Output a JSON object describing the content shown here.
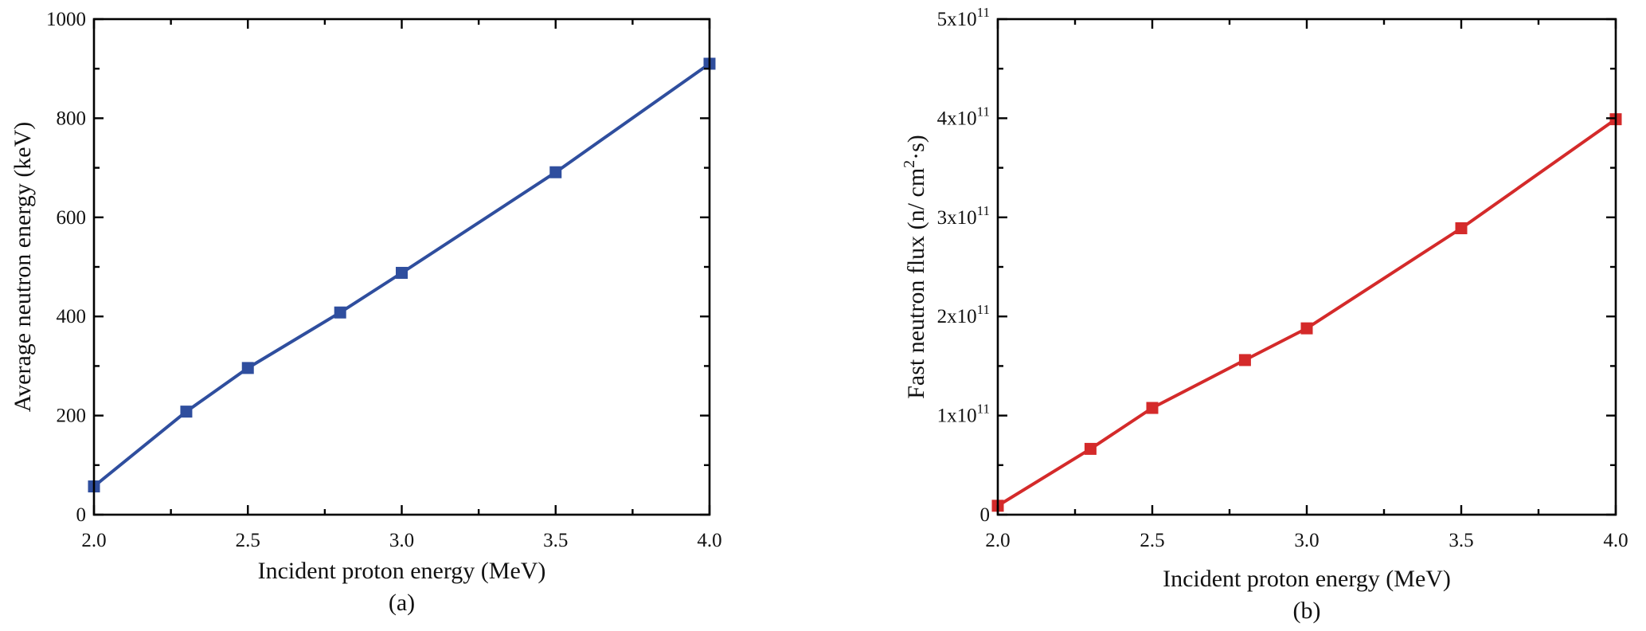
{
  "figure": {
    "panels": [
      {
        "id": "a",
        "caption": "(a)",
        "xlabel": "Incident proton energy (MeV)",
        "ylabel": "Average neutron energy (keV)",
        "color": "#2F4E9E",
        "x_ticks": [
          "2.0",
          "2.5",
          "3.0",
          "3.5",
          "4.0"
        ],
        "y_ticks": [
          "0",
          "200",
          "400",
          "600",
          "800",
          "1000"
        ]
      },
      {
        "id": "b",
        "caption": "(b)",
        "xlabel": "Incident proton energy (MeV)",
        "ylabel_main": "Fast neutron flux (n/ cm",
        "ylabel_sup": "2",
        "ylabel_tail": "·s)",
        "color": "#D42A2A",
        "x_ticks": [
          "2.0",
          "2.5",
          "3.0",
          "3.5",
          "4.0"
        ],
        "y_ticks": [
          {
            "base": "0",
            "exp": ""
          },
          {
            "base": "1x10",
            "exp": "11"
          },
          {
            "base": "2x10",
            "exp": "11"
          },
          {
            "base": "3x10",
            "exp": "11"
          },
          {
            "base": "4x10",
            "exp": "11"
          },
          {
            "base": "5x10",
            "exp": "11"
          }
        ]
      }
    ]
  },
  "chart_data": [
    {
      "type": "line",
      "title": "(a)",
      "xlabel": "Incident proton energy (MeV)",
      "ylabel": "Average neutron energy (keV)",
      "x": [
        2.0,
        2.3,
        2.5,
        2.8,
        3.0,
        3.5,
        4.0
      ],
      "series": [
        {
          "name": "Average neutron energy",
          "color": "#2F4E9E",
          "marker": "square",
          "values": [
            57,
            208,
            296,
            408,
            488,
            691,
            910
          ]
        }
      ],
      "xlim": [
        2.0,
        4.0
      ],
      "ylim": [
        0,
        1000
      ],
      "x_major_ticks": [
        2.0,
        2.5,
        3.0,
        3.5,
        4.0
      ],
      "y_major_ticks": [
        0,
        200,
        400,
        600,
        800,
        1000
      ],
      "grid": false,
      "legend": null
    },
    {
      "type": "line",
      "title": "(b)",
      "xlabel": "Incident proton energy (MeV)",
      "ylabel": "Fast neutron flux (n/ cm²·s)",
      "x": [
        2.0,
        2.3,
        2.5,
        2.8,
        3.0,
        3.5,
        4.0
      ],
      "series": [
        {
          "name": "Fast neutron flux",
          "color": "#D42A2A",
          "marker": "square",
          "values": [
            9000000000.0,
            66400000000.0,
            107700000000.0,
            156000000000.0,
            188000000000.0,
            289000000000.0,
            399000000000.0
          ]
        }
      ],
      "xlim": [
        2.0,
        4.0
      ],
      "ylim": [
        0,
        500000000000.0
      ],
      "x_major_ticks": [
        2.0,
        2.5,
        3.0,
        3.5,
        4.0
      ],
      "y_major_ticks": [
        0,
        100000000000.0,
        200000000000.0,
        300000000000.0,
        400000000000.0,
        500000000000.0
      ],
      "grid": false,
      "legend": null
    }
  ]
}
